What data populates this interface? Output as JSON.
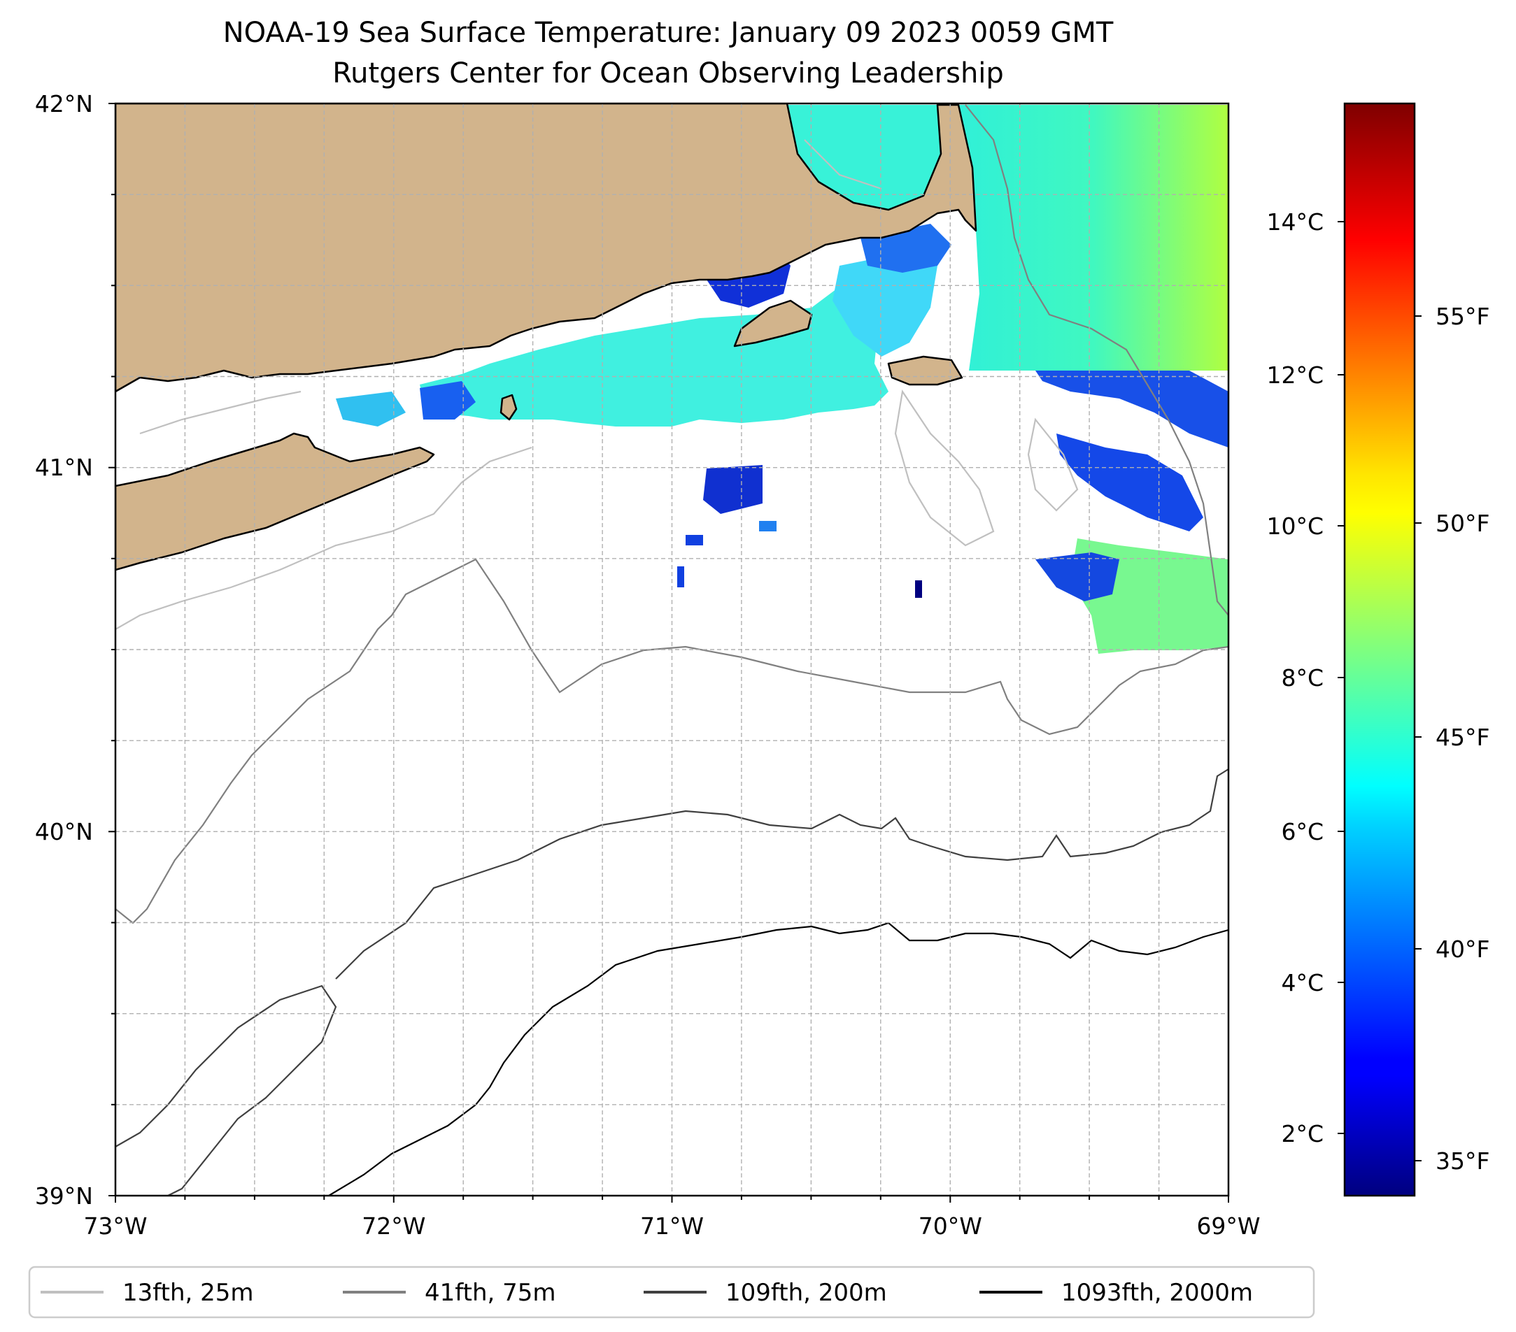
{
  "title": {
    "line1": "NOAA-19 Sea Surface Temperature: January 09 2023 0059 GMT",
    "line2": "Rutgers Center for Ocean Observing Leadership"
  },
  "map": {
    "lat_range": [
      39,
      42
    ],
    "lon_range": [
      -73,
      -69
    ],
    "lat_ticks": [
      {
        "value": 42,
        "label": "42°N"
      },
      {
        "value": 41,
        "label": "41°N"
      },
      {
        "value": 40,
        "label": "40°N"
      },
      {
        "value": 39,
        "label": "39°N"
      }
    ],
    "lon_ticks": [
      {
        "value": -73,
        "label": "73°W"
      },
      {
        "value": -72,
        "label": "72°W"
      },
      {
        "value": -71,
        "label": "71°W"
      },
      {
        "value": -70,
        "label": "70°W"
      },
      {
        "value": -69,
        "label": "69°W"
      }
    ],
    "grid_step_deg": 0.25,
    "land_color": "#d2b48c",
    "ocean_color": "#ffffff"
  },
  "colorbar": {
    "colormap": "jet",
    "range_c": [
      1.3,
      15.8
    ],
    "celsius_ticks": [
      {
        "value": 2,
        "label": "2°C"
      },
      {
        "value": 4,
        "label": "4°C"
      },
      {
        "value": 6,
        "label": "6°C"
      },
      {
        "value": 8,
        "label": "8°C"
      },
      {
        "value": 10,
        "label": "10°C"
      },
      {
        "value": 12,
        "label": "12°C"
      },
      {
        "value": 14,
        "label": "14°C"
      }
    ],
    "fahrenheit_ticks": [
      {
        "value": 35,
        "label": "35°F"
      },
      {
        "value": 40,
        "label": "40°F"
      },
      {
        "value": 45,
        "label": "45°F"
      },
      {
        "value": 50,
        "label": "50°F"
      },
      {
        "value": 55,
        "label": "55°F"
      }
    ]
  },
  "legend": [
    {
      "label": "13fth, 25m",
      "color": "#c0c0c0"
    },
    {
      "label": "41fth, 75m",
      "color": "#808080"
    },
    {
      "label": "109fth, 200m",
      "color": "#404040"
    },
    {
      "label": "1093fth, 2000m",
      "color": "#000000"
    }
  ]
}
